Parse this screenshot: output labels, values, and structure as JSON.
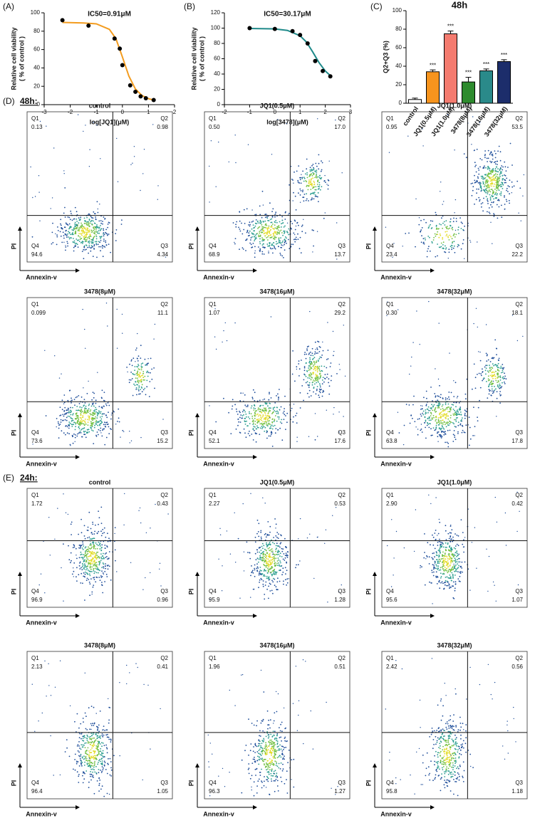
{
  "chart_data": [
    {
      "type": "scatter",
      "panel": "(A)",
      "title": "IC50=0.91μM",
      "xlabel": "log[JQ1](μM)",
      "ylabel": [
        "Relative cell viability",
        "( % of control )"
      ],
      "xlim": [
        -3,
        2
      ],
      "xticks": [
        -3,
        -2,
        -1,
        0,
        1,
        2
      ],
      "ylim": [
        0,
        100
      ],
      "yticks": [
        0,
        20,
        40,
        60,
        80,
        100
      ],
      "color": "#000000",
      "x": [
        -2.3,
        -1.3,
        -0.3,
        -0.1,
        0,
        0.3,
        0.5,
        0.7,
        0.9,
        1.2
      ],
      "values": [
        92,
        86,
        72,
        61,
        43,
        21,
        14,
        9,
        7,
        5
      ],
      "fit": {
        "color": "#f39c1f",
        "x": [
          -2.3,
          -1.5,
          -1,
          -0.5,
          -0.25,
          0,
          0.25,
          0.5,
          0.75,
          1,
          1.2
        ],
        "values": [
          89.5,
          89,
          88,
          82,
          72,
          52,
          31,
          17,
          10,
          6.5,
          5
        ]
      }
    },
    {
      "type": "scatter",
      "panel": "(B)",
      "title": "IC50=30.17μM",
      "xlabel": "log[3478](μM)",
      "ylabel": [
        "Relative cell viability",
        "( % of control )"
      ],
      "xlim": [
        -2,
        3
      ],
      "xticks": [
        -2,
        -1,
        0,
        1,
        2,
        3
      ],
      "ylim": [
        0,
        120
      ],
      "yticks": [
        0,
        20,
        40,
        60,
        80,
        100,
        120
      ],
      "color": "#000000",
      "x": [
        -1,
        0,
        0.7,
        1,
        1.3,
        1.6,
        1.9,
        2.2
      ],
      "values": [
        100,
        99,
        96,
        91,
        80,
        57,
        44,
        37
      ],
      "fit": {
        "color": "#1f8a8a",
        "x": [
          -1,
          0,
          0.5,
          1,
          1.25,
          1.5,
          1.75,
          2,
          2.2
        ],
        "values": [
          99.5,
          99,
          97,
          90,
          82,
          69,
          55,
          44,
          38
        ]
      }
    },
    {
      "type": "bar",
      "panel": "(C)",
      "title": "48h",
      "ylabel": "Q2+Q3 (%)",
      "categories": [
        "control",
        "JQ1(0.5μM)",
        "JQ1(1.0μM)",
        "3478(8μM)",
        "3478(16μM)",
        "3478(32μM)"
      ],
      "values": [
        4,
        34,
        75,
        23,
        35,
        45
      ],
      "errors": [
        1.5,
        2,
        3,
        5,
        2,
        2
      ],
      "colors": [
        "#ffffff",
        "#f7941d",
        "#f47b6f",
        "#2e8b2e",
        "#2a8a8a",
        "#1c2d6b"
      ],
      "ylim": [
        0,
        100
      ],
      "yticks": [
        0,
        20,
        40,
        60,
        80,
        100
      ],
      "annotations": [
        {
          "category": "JQ1(0.5μM)",
          "text": "***"
        },
        {
          "category": "JQ1(1.0μM)",
          "text": "***"
        },
        {
          "category": "3478(8μM)",
          "text": "***"
        },
        {
          "category": "3478(16μM)",
          "text": "***"
        },
        {
          "category": "3478(32μM)",
          "text": "***"
        }
      ]
    }
  ],
  "flow": {
    "xlabel": "Annexin-v",
    "ylabel": "PI",
    "groups": [
      {
        "label": "(D)",
        "time": "48h:",
        "panels": [
          {
            "title": "control",
            "quadrants": [
              {
                "name": "Q1",
                "value": "0.13"
              },
              {
                "name": "Q2",
                "value": "0.98"
              },
              {
                "name": "Q3",
                "value": "4.34"
              },
              {
                "name": "Q4",
                "value": "94.6"
              }
            ]
          },
          {
            "title": "JQ1(0.5μM)",
            "quadrants": [
              {
                "name": "Q1",
                "value": "0.50"
              },
              {
                "name": "Q2",
                "value": "17.0"
              },
              {
                "name": "Q3",
                "value": "13.7"
              },
              {
                "name": "Q4",
                "value": "68.9"
              }
            ]
          },
          {
            "title": "JQ1(1.0μM)",
            "quadrants": [
              {
                "name": "Q1",
                "value": "0.95"
              },
              {
                "name": "Q2",
                "value": "53.5"
              },
              {
                "name": "Q3",
                "value": "22.2"
              },
              {
                "name": "Q4",
                "value": "23.4"
              }
            ]
          },
          {
            "title": "3478(8μM)",
            "quadrants": [
              {
                "name": "Q1",
                "value": "0.099"
              },
              {
                "name": "Q2",
                "value": "11.1"
              },
              {
                "name": "Q3",
                "value": "15.2"
              },
              {
                "name": "Q4",
                "value": "73.6"
              }
            ]
          },
          {
            "title": "3478(16μM)",
            "quadrants": [
              {
                "name": "Q1",
                "value": "1.07"
              },
              {
                "name": "Q2",
                "value": "29.2"
              },
              {
                "name": "Q3",
                "value": "17.6"
              },
              {
                "name": "Q4",
                "value": "52.1"
              }
            ]
          },
          {
            "title": "3478(32μM)",
            "quadrants": [
              {
                "name": "Q1",
                "value": "0.30"
              },
              {
                "name": "Q2",
                "value": "18.1"
              },
              {
                "name": "Q3",
                "value": "17.8"
              },
              {
                "name": "Q4",
                "value": "63.8"
              }
            ]
          }
        ]
      },
      {
        "label": "(E)",
        "time": "24h:",
        "panels": [
          {
            "title": "control",
            "quadrants": [
              {
                "name": "Q1",
                "value": "1.72"
              },
              {
                "name": "Q2",
                "value": "0.43"
              },
              {
                "name": "Q3",
                "value": "0.96"
              },
              {
                "name": "Q4",
                "value": "96.9"
              }
            ]
          },
          {
            "title": "JQ1(0.5μM)",
            "quadrants": [
              {
                "name": "Q1",
                "value": "2.27"
              },
              {
                "name": "Q2",
                "value": "0.53"
              },
              {
                "name": "Q3",
                "value": "1.28"
              },
              {
                "name": "Q4",
                "value": "95.9"
              }
            ]
          },
          {
            "title": "JQ1(1.0μM)",
            "quadrants": [
              {
                "name": "Q1",
                "value": "2.90"
              },
              {
                "name": "Q2",
                "value": "0.42"
              },
              {
                "name": "Q3",
                "value": "1.07"
              },
              {
                "name": "Q4",
                "value": "95.6"
              }
            ]
          },
          {
            "title": "3478(8μM)",
            "quadrants": [
              {
                "name": "Q1",
                "value": "2.13"
              },
              {
                "name": "Q2",
                "value": "0.41"
              },
              {
                "name": "Q3",
                "value": "1.05"
              },
              {
                "name": "Q4",
                "value": "96.4"
              }
            ]
          },
          {
            "title": "3478(16μM)",
            "quadrants": [
              {
                "name": "Q1",
                "value": "1.96"
              },
              {
                "name": "Q2",
                "value": "0.51"
              },
              {
                "name": "Q3",
                "value": "1.27"
              },
              {
                "name": "Q4",
                "value": "96.3"
              }
            ]
          },
          {
            "title": "3478(32μM)",
            "quadrants": [
              {
                "name": "Q1",
                "value": "2.42"
              },
              {
                "name": "Q2",
                "value": "0.56"
              },
              {
                "name": "Q3",
                "value": "1.18"
              },
              {
                "name": "Q4",
                "value": "95.8"
              }
            ]
          }
        ]
      }
    ]
  }
}
